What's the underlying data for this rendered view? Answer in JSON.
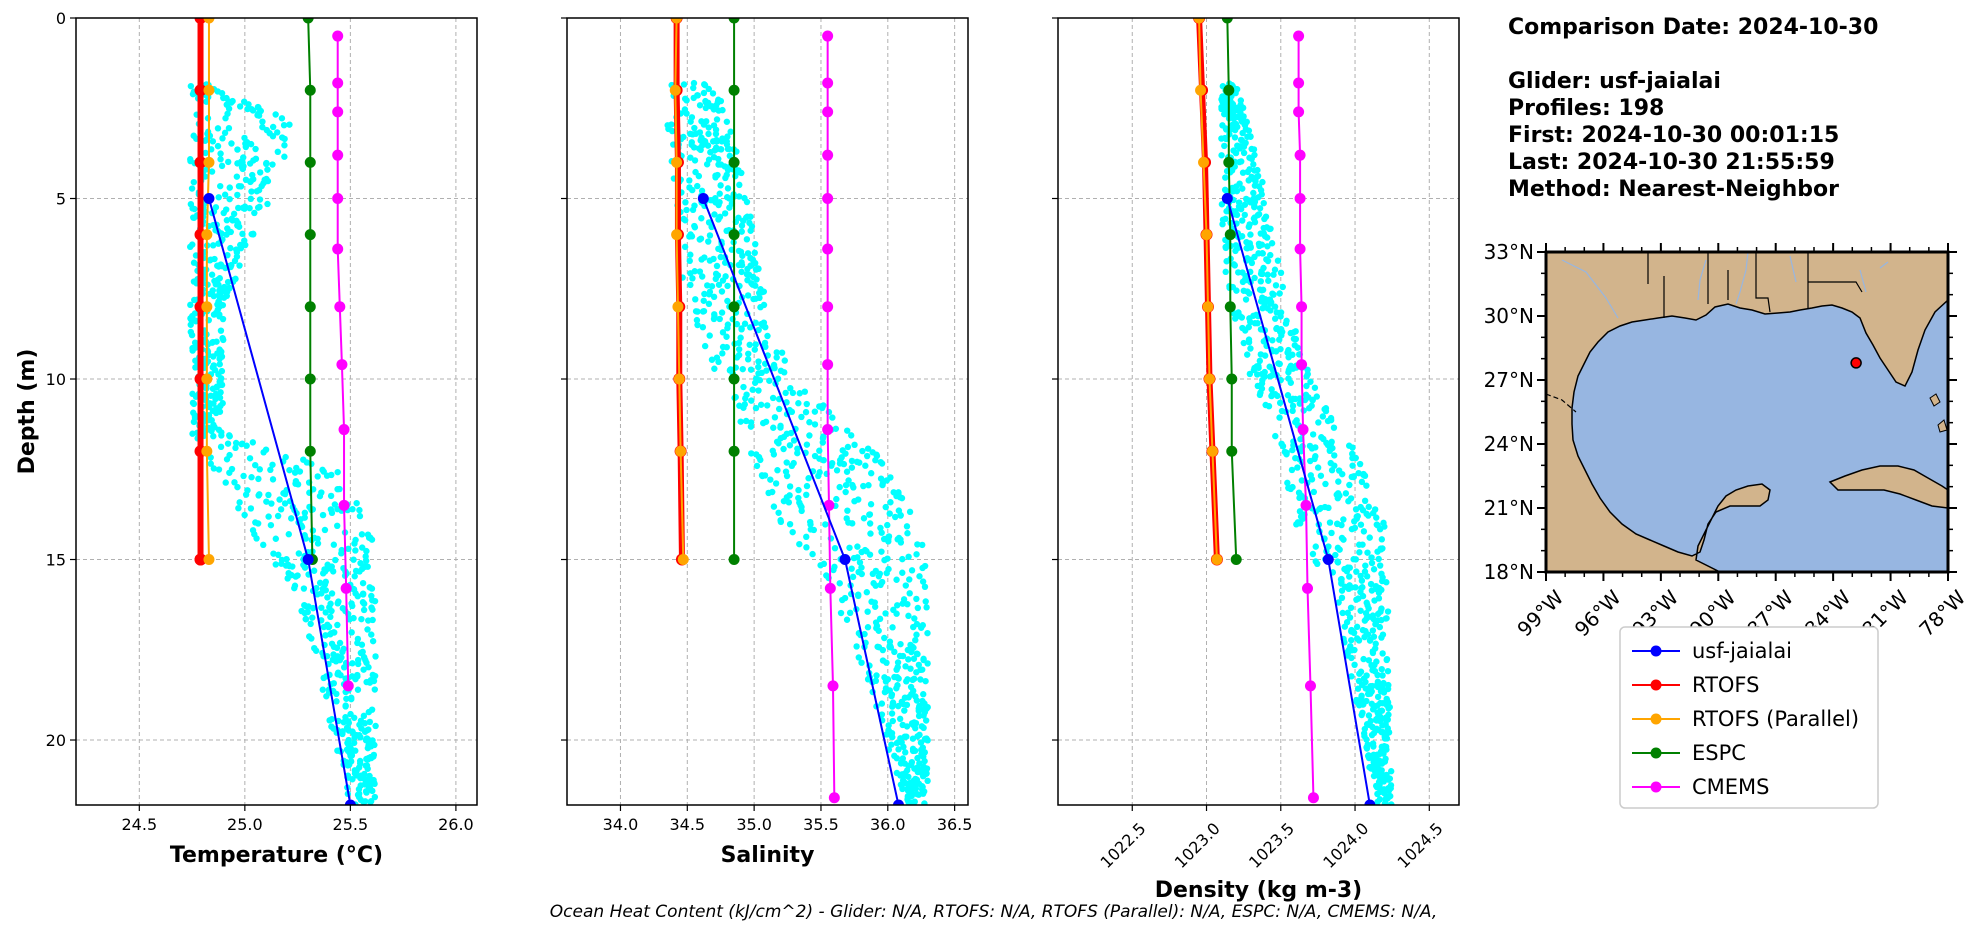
{
  "info": {
    "comparison_date": "Comparison Date: 2024-10-30",
    "glider": "Glider: usf-jaialai",
    "profiles": "Profiles: 198",
    "first": "First: 2024-10-30 00:01:15",
    "last": "Last: 2024-10-30 21:55:59",
    "method": "Method: Nearest-Neighbor"
  },
  "footer": "Ocean Heat Content (kJ/cm^2) - Glider: N/A,  RTOFS: N/A,  RTOFS (Parallel): N/A,  ESPC: N/A,  CMEMS: N/A,",
  "colors": {
    "glider_scatter": "#00ffff",
    "usf-jaialai": "#0000ff",
    "RTOFS": "#ff0000",
    "RTOFS (Parallel)": "#ffa500",
    "ESPC": "#008000",
    "CMEMS": "#ff00ff",
    "ocean": "#97b6e1",
    "land": "#d2b48c"
  },
  "chart_data": [
    {
      "type": "line",
      "xlabel": "Temperature (°C)",
      "ylabel": "Depth (m)",
      "xlim": [
        24.2,
        26.1
      ],
      "ylim": [
        21.8,
        0
      ],
      "xticks": [
        "24.5",
        "25.0",
        "25.5",
        "26.0"
      ],
      "xtick_values": [
        24.5,
        25.0,
        25.5,
        26.0
      ],
      "yticks": [
        "0",
        "5",
        "10",
        "15",
        "20"
      ],
      "ytick_values": [
        0,
        5,
        10,
        15,
        20
      ],
      "grid": true,
      "scatter_envelope": [
        [
          1.8,
          24.74,
          24.88
        ],
        [
          3,
          24.74,
          25.25
        ],
        [
          5,
          24.74,
          25.12
        ],
        [
          8,
          24.74,
          24.9
        ],
        [
          11.5,
          24.75,
          24.9
        ],
        [
          12.5,
          24.85,
          25.45
        ],
        [
          14,
          25.0,
          25.6
        ],
        [
          16,
          25.25,
          25.62
        ],
        [
          21.8,
          25.5,
          25.62
        ]
      ],
      "series": [
        {
          "name": "usf-jaialai",
          "x": [
            24.83,
            25.3,
            25.5
          ],
          "y": [
            5,
            15,
            21.8
          ]
        },
        {
          "name": "RTOFS",
          "x": [
            24.79,
            24.79,
            24.79,
            24.79,
            24.79,
            24.79,
            24.79,
            24.79,
            24.79
          ],
          "y": [
            0,
            2,
            4,
            6,
            8,
            10,
            12,
            15,
            15
          ]
        },
        {
          "name": "RTOFS (Parallel)",
          "x": [
            24.83,
            24.83,
            24.83,
            24.82,
            24.82,
            24.82,
            24.82,
            24.83
          ],
          "y": [
            0,
            2,
            4,
            6,
            8,
            10,
            12,
            15
          ]
        },
        {
          "name": "ESPC",
          "x": [
            25.3,
            25.31,
            25.31,
            25.31,
            25.31,
            25.31,
            25.31,
            25.32
          ],
          "y": [
            0,
            2,
            4,
            6,
            8,
            10,
            12,
            15
          ]
        },
        {
          "name": "CMEMS",
          "x": [
            25.44,
            25.44,
            25.44,
            25.44,
            25.44,
            25.44,
            25.45,
            25.46,
            25.47,
            25.47,
            25.48,
            25.49
          ],
          "y": [
            0.5,
            1.8,
            2.6,
            3.8,
            5,
            6.4,
            8.0,
            9.6,
            11.4,
            13.5,
            15.8,
            18.5
          ]
        }
      ]
    },
    {
      "type": "line",
      "xlabel": "Salinity",
      "ylabel": "",
      "xlim": [
        33.6,
        36.6
      ],
      "ylim": [
        21.8,
        0
      ],
      "xticks": [
        "34.0",
        "34.5",
        "35.0",
        "35.5",
        "36.0",
        "36.5"
      ],
      "xtick_values": [
        34.0,
        34.5,
        35.0,
        35.5,
        36.0,
        36.5
      ],
      "yticks": [],
      "ytick_values": [
        0,
        5,
        10,
        15,
        20
      ],
      "grid": true,
      "scatter_envelope": [
        [
          1.8,
          34.35,
          34.75
        ],
        [
          4,
          34.35,
          34.9
        ],
        [
          6,
          34.4,
          35.0
        ],
        [
          8,
          34.5,
          35.1
        ],
        [
          10,
          34.7,
          35.3
        ],
        [
          12,
          34.95,
          35.9
        ],
        [
          14,
          35.2,
          36.25
        ],
        [
          16,
          35.6,
          36.3
        ],
        [
          21.8,
          36.15,
          36.3
        ]
      ],
      "series": [
        {
          "name": "usf-jaialai",
          "x": [
            34.62,
            35.68,
            36.08
          ],
          "y": [
            5,
            15,
            21.8
          ]
        },
        {
          "name": "RTOFS",
          "x": [
            34.42,
            34.42,
            34.43,
            34.43,
            34.44,
            34.44,
            34.45,
            34.46
          ],
          "y": [
            0,
            2,
            4,
            6,
            8,
            10,
            12,
            15
          ]
        },
        {
          "name": "RTOFS (Parallel)",
          "x": [
            34.42,
            34.41,
            34.42,
            34.42,
            34.43,
            34.44,
            34.45,
            34.47
          ],
          "y": [
            0,
            2,
            4,
            6,
            8,
            10,
            12,
            15
          ]
        },
        {
          "name": "ESPC",
          "x": [
            34.85,
            34.85,
            34.85,
            34.85,
            34.85,
            34.85,
            34.85,
            34.85
          ],
          "y": [
            0,
            2,
            4,
            6,
            8,
            10,
            12,
            15
          ]
        },
        {
          "name": "CMEMS",
          "x": [
            35.55,
            35.55,
            35.55,
            35.55,
            35.55,
            35.55,
            35.55,
            35.55,
            35.55,
            35.56,
            35.57,
            35.59,
            35.6
          ],
          "y": [
            0.5,
            1.8,
            2.6,
            3.8,
            5,
            6.4,
            8.0,
            9.6,
            11.4,
            13.5,
            15.8,
            18.5,
            21.6
          ]
        }
      ]
    },
    {
      "type": "line",
      "xlabel": "Density (kg m-3)",
      "ylabel": "",
      "xlim": [
        1022.0,
        1024.7
      ],
      "ylim": [
        21.8,
        0
      ],
      "xticks": [
        "1022.5",
        "1023.0",
        "1023.5",
        "1024.0",
        "1024.5"
      ],
      "xtick_values": [
        1022.5,
        1023.0,
        1023.5,
        1024.0,
        1024.5
      ],
      "yticks": [],
      "ytick_values": [
        0,
        5,
        10,
        15,
        20
      ],
      "grid": true,
      "scatter_envelope": [
        [
          1.8,
          1023.1,
          1023.2
        ],
        [
          4,
          1023.1,
          1023.35
        ],
        [
          6,
          1023.1,
          1023.45
        ],
        [
          8,
          1023.15,
          1023.55
        ],
        [
          10,
          1023.3,
          1023.7
        ],
        [
          12,
          1023.45,
          1024.0
        ],
        [
          14,
          1023.6,
          1024.2
        ],
        [
          16,
          1023.85,
          1024.22
        ],
        [
          21.8,
          1024.15,
          1024.25
        ]
      ],
      "series": [
        {
          "name": "usf-jaialai",
          "x": [
            1023.14,
            1023.82,
            1024.1
          ],
          "y": [
            5,
            15,
            21.8
          ]
        },
        {
          "name": "RTOFS",
          "x": [
            1022.95,
            1022.97,
            1022.99,
            1023.0,
            1023.01,
            1023.02,
            1023.04,
            1023.07
          ],
          "y": [
            0,
            2,
            4,
            6,
            8,
            10,
            12,
            15
          ]
        },
        {
          "name": "RTOFS (Parallel)",
          "x": [
            1022.95,
            1022.96,
            1022.98,
            1023.0,
            1023.01,
            1023.02,
            1023.04,
            1023.07
          ],
          "y": [
            0,
            2,
            4,
            6,
            8,
            10,
            12,
            15
          ]
        },
        {
          "name": "ESPC",
          "x": [
            1023.14,
            1023.15,
            1023.15,
            1023.16,
            1023.16,
            1023.17,
            1023.17,
            1023.2
          ],
          "y": [
            0,
            2,
            4,
            6,
            8,
            10,
            12,
            15
          ]
        },
        {
          "name": "CMEMS",
          "x": [
            1023.62,
            1023.62,
            1023.62,
            1023.63,
            1023.63,
            1023.63,
            1023.64,
            1023.64,
            1023.65,
            1023.67,
            1023.68,
            1023.7,
            1023.72
          ],
          "y": [
            0.5,
            1.8,
            2.6,
            3.8,
            5,
            6.4,
            8.0,
            9.6,
            11.4,
            13.5,
            15.8,
            18.5,
            21.6
          ]
        }
      ]
    }
  ],
  "map": {
    "lat_ticks": [
      "33°N",
      "30°N",
      "27°N",
      "24°N",
      "21°N",
      "18°N"
    ],
    "lat_values": [
      33,
      30,
      27,
      24,
      21,
      18
    ],
    "lon_ticks": [
      "99°W",
      "96°W",
      "93°W",
      "90°W",
      "87°W",
      "84°W",
      "81°W",
      "78°W"
    ],
    "lon_values": [
      -99,
      -96,
      -93,
      -90,
      -87,
      -84,
      -81,
      -78
    ],
    "extent": [
      -99,
      -78,
      18,
      33
    ],
    "glider_position": {
      "lon": -82.8,
      "lat": 27.8
    }
  },
  "legend": {
    "entries": [
      "usf-jaialai",
      "RTOFS",
      "RTOFS (Parallel)",
      "ESPC",
      "CMEMS"
    ]
  }
}
